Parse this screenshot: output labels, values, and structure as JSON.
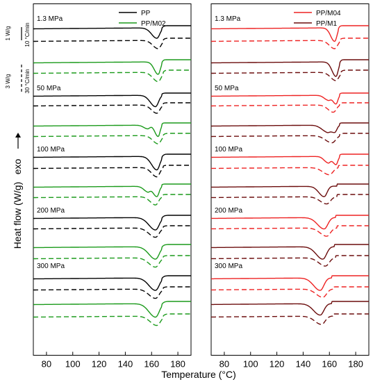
{
  "chart_data": [
    {
      "type": "line",
      "panel": "left",
      "x_range": [
        70,
        190
      ],
      "x_ticks": [
        80,
        100,
        120,
        140,
        160,
        180
      ],
      "y_label": "Heat flow (W/g)",
      "exo_label": "exo",
      "scale_bars": [
        {
          "value": "1 W/g",
          "rate": "10 °C/min"
        },
        {
          "value": "3 W/g",
          "rate": "30 °C/min"
        }
      ],
      "legend": [
        {
          "name": "PP",
          "color": "#000000"
        },
        {
          "name": "PP/M02",
          "color": "#1a9a1a"
        }
      ],
      "pressures": [
        "1.3 MPa",
        "50 MPa",
        "100 MPa",
        "200 MPa",
        "300 MPa"
      ],
      "series": [
        {
          "name": "PP",
          "pressure": "1.3 MPa",
          "style": "solid",
          "color": "#000000",
          "peaks": [
            {
              "x": 164,
              "depth": 1.0,
              "width": 4
            }
          ],
          "endset": 168
        },
        {
          "name": "PP",
          "pressure": "1.3 MPa",
          "style": "dashed",
          "color": "#000000",
          "peaks": [
            {
              "x": 165,
              "depth": 0.8,
              "width": 4
            }
          ],
          "endset": 169
        },
        {
          "name": "PP/M02",
          "pressure": "1.3 MPa",
          "style": "solid",
          "color": "#1a9a1a",
          "peaks": [
            {
              "x": 165,
              "depth": 1.2,
              "width": 3
            }
          ],
          "endset": 168
        },
        {
          "name": "PP/M02",
          "pressure": "1.3 MPa",
          "style": "dashed",
          "color": "#1a9a1a",
          "peaks": [
            {
              "x": 165,
              "depth": 0.9,
              "width": 4
            }
          ],
          "endset": 169
        },
        {
          "name": "PP",
          "pressure": "50 MPa",
          "style": "solid",
          "color": "#000000",
          "peaks": [
            {
              "x": 163,
              "depth": 1.1,
              "width": 4
            }
          ],
          "endset": 168
        },
        {
          "name": "PP",
          "pressure": "50 MPa",
          "style": "dashed",
          "color": "#000000",
          "peaks": [
            {
              "x": 164,
              "depth": 0.8,
              "width": 4
            }
          ],
          "endset": 169
        },
        {
          "name": "PP/M02",
          "pressure": "50 MPa",
          "style": "solid",
          "color": "#1a9a1a",
          "peaks": [
            {
              "x": 157,
              "depth": 0.35,
              "width": 3
            },
            {
              "x": 165,
              "depth": 1.1,
              "width": 2.5
            }
          ],
          "endset": 168
        },
        {
          "name": "PP/M02",
          "pressure": "50 MPa",
          "style": "dashed",
          "color": "#1a9a1a",
          "peaks": [
            {
              "x": 165,
              "depth": 0.8,
              "width": 4
            }
          ],
          "endset": 169
        },
        {
          "name": "PP",
          "pressure": "100 MPa",
          "style": "solid",
          "color": "#000000",
          "peaks": [
            {
              "x": 164,
              "depth": 1.3,
              "width": 4
            }
          ],
          "endset": 168
        },
        {
          "name": "PP",
          "pressure": "100 MPa",
          "style": "dashed",
          "color": "#000000",
          "peaks": [
            {
              "x": 164,
              "depth": 0.9,
              "width": 4
            }
          ],
          "endset": 169
        },
        {
          "name": "PP/M02",
          "pressure": "100 MPa",
          "style": "solid",
          "color": "#1a9a1a",
          "peaks": [
            {
              "x": 157,
              "depth": 0.5,
              "width": 3
            },
            {
              "x": 164,
              "depth": 1.0,
              "width": 3
            }
          ],
          "endset": 168
        },
        {
          "name": "PP/M02",
          "pressure": "100 MPa",
          "style": "dashed",
          "color": "#1a9a1a",
          "peaks": [
            {
              "x": 163,
              "depth": 0.8,
              "width": 4
            }
          ],
          "endset": 169
        },
        {
          "name": "PP",
          "pressure": "200 MPa",
          "style": "solid",
          "color": "#000000",
          "peaks": [
            {
              "x": 163,
              "depth": 1.2,
              "width": 5
            }
          ],
          "endset": 168
        },
        {
          "name": "PP",
          "pressure": "200 MPa",
          "style": "dashed",
          "color": "#000000",
          "peaks": [
            {
              "x": 163,
              "depth": 0.9,
              "width": 5
            }
          ],
          "endset": 169
        },
        {
          "name": "PP/M02",
          "pressure": "200 MPa",
          "style": "solid",
          "color": "#1a9a1a",
          "peaks": [
            {
              "x": 163,
              "depth": 1.2,
              "width": 5
            }
          ],
          "endset": 168
        },
        {
          "name": "PP/M02",
          "pressure": "200 MPa",
          "style": "dashed",
          "color": "#1a9a1a",
          "peaks": [
            {
              "x": 163,
              "depth": 0.9,
              "width": 5
            }
          ],
          "endset": 169
        },
        {
          "name": "PP",
          "pressure": "300 MPa",
          "style": "solid",
          "color": "#000000",
          "peaks": [
            {
              "x": 163,
              "depth": 1.2,
              "width": 5
            }
          ],
          "endset": 168
        },
        {
          "name": "PP",
          "pressure": "300 MPa",
          "style": "dashed",
          "color": "#000000",
          "peaks": [
            {
              "x": 163,
              "depth": 0.9,
              "width": 5
            }
          ],
          "endset": 169
        },
        {
          "name": "PP/M02",
          "pressure": "300 MPa",
          "style": "solid",
          "color": "#1a9a1a",
          "peaks": [
            {
              "x": 163,
              "depth": 1.3,
              "width": 5
            }
          ],
          "endset": 168
        },
        {
          "name": "PP/M02",
          "pressure": "300 MPa",
          "style": "dashed",
          "color": "#1a9a1a",
          "peaks": [
            {
              "x": 164,
              "depth": 0.9,
              "width": 5
            }
          ],
          "endset": 169
        }
      ]
    },
    {
      "type": "line",
      "panel": "right",
      "x_range": [
        70,
        190
      ],
      "x_ticks": [
        80,
        100,
        120,
        140,
        160,
        180
      ],
      "legend": [
        {
          "name": "PP/M04",
          "color": "#ee2222"
        },
        {
          "name": "PP/M1",
          "color": "#6b0c0c"
        }
      ],
      "pressures": [
        "1.3 MPa",
        "50 MPa",
        "100 MPa",
        "200 MPa",
        "300 MPa"
      ],
      "series": [
        {
          "name": "PP/M04",
          "pressure": "1.3 MPa",
          "style": "solid",
          "color": "#ee2222",
          "peaks": [
            {
              "x": 164,
              "depth": 1.3,
              "width": 3
            }
          ],
          "endset": 167
        },
        {
          "name": "PP/M04",
          "pressure": "1.3 MPa",
          "style": "dashed",
          "color": "#ee2222",
          "peaks": [
            {
              "x": 164,
              "depth": 0.8,
              "width": 4
            }
          ],
          "endset": 168
        },
        {
          "name": "PP/M1",
          "pressure": "1.3 MPa",
          "style": "solid",
          "color": "#6b0c0c",
          "peaks": [
            {
              "x": 165,
              "depth": 1.4,
              "width": 3
            }
          ],
          "endset": 168
        },
        {
          "name": "PP/M1",
          "pressure": "1.3 MPa",
          "style": "dashed",
          "color": "#6b0c0c",
          "peaks": [
            {
              "x": 165,
              "depth": 0.8,
              "width": 4
            }
          ],
          "endset": 169
        },
        {
          "name": "PP/M04",
          "pressure": "50 MPa",
          "style": "solid",
          "color": "#ee2222",
          "peaks": [
            {
              "x": 159,
              "depth": 0.45,
              "width": 3
            },
            {
              "x": 165,
              "depth": 0.85,
              "width": 2.5
            }
          ],
          "endset": 168
        },
        {
          "name": "PP/M04",
          "pressure": "50 MPa",
          "style": "dashed",
          "color": "#ee2222",
          "peaks": [
            {
              "x": 163,
              "depth": 0.7,
              "width": 4
            }
          ],
          "endset": 168
        },
        {
          "name": "PP/M1",
          "pressure": "50 MPa",
          "style": "solid",
          "color": "#6b0c0c",
          "peaks": [
            {
              "x": 158,
              "depth": 0.6,
              "width": 4
            },
            {
              "x": 164,
              "depth": 0.7,
              "width": 3
            }
          ],
          "endset": 168
        },
        {
          "name": "PP/M1",
          "pressure": "50 MPa",
          "style": "dashed",
          "color": "#6b0c0c",
          "peaks": [
            {
              "x": 162,
              "depth": 0.7,
              "width": 5
            }
          ],
          "endset": 168
        },
        {
          "name": "PP/M04",
          "pressure": "100 MPa",
          "style": "solid",
          "color": "#ee2222",
          "peaks": [
            {
              "x": 159,
              "depth": 0.6,
              "width": 3
            },
            {
              "x": 165,
              "depth": 0.8,
              "width": 2.5
            }
          ],
          "endset": 168
        },
        {
          "name": "PP/M04",
          "pressure": "100 MPa",
          "style": "dashed",
          "color": "#ee2222",
          "peaks": [
            {
              "x": 160,
              "depth": 0.7,
              "width": 5
            }
          ],
          "endset": 167
        },
        {
          "name": "PP/M1",
          "pressure": "100 MPa",
          "style": "solid",
          "color": "#6b0c0c",
          "peaks": [
            {
              "x": 156,
              "depth": 1.0,
              "width": 4
            }
          ],
          "endset": 166
        },
        {
          "name": "PP/M1",
          "pressure": "100 MPa",
          "style": "dashed",
          "color": "#6b0c0c",
          "peaks": [
            {
              "x": 158,
              "depth": 0.7,
              "width": 5
            }
          ],
          "endset": 166
        },
        {
          "name": "PP/M04",
          "pressure": "200 MPa",
          "style": "solid",
          "color": "#ee2222",
          "peaks": [
            {
              "x": 156,
              "depth": 1.1,
              "width": 5
            }
          ],
          "endset": 165
        },
        {
          "name": "PP/M04",
          "pressure": "200 MPa",
          "style": "dashed",
          "color": "#ee2222",
          "peaks": [
            {
              "x": 158,
              "depth": 0.8,
              "width": 5
            }
          ],
          "endset": 166
        },
        {
          "name": "PP/M1",
          "pressure": "200 MPa",
          "style": "solid",
          "color": "#6b0c0c",
          "peaks": [
            {
              "x": 155,
              "depth": 1.2,
              "width": 5
            }
          ],
          "endset": 164
        },
        {
          "name": "PP/M1",
          "pressure": "200 MPa",
          "style": "dashed",
          "color": "#6b0c0c",
          "peaks": [
            {
              "x": 157,
              "depth": 0.8,
              "width": 5
            }
          ],
          "endset": 165
        },
        {
          "name": "PP/M04",
          "pressure": "300 MPa",
          "style": "solid",
          "color": "#ee2222",
          "peaks": [
            {
              "x": 153,
              "depth": 1.2,
              "width": 5
            }
          ],
          "endset": 162
        },
        {
          "name": "PP/M04",
          "pressure": "300 MPa",
          "style": "dashed",
          "color": "#ee2222",
          "peaks": [
            {
              "x": 155,
              "depth": 0.8,
              "width": 5
            }
          ],
          "endset": 163
        },
        {
          "name": "PP/M1",
          "pressure": "300 MPa",
          "style": "solid",
          "color": "#6b0c0c",
          "peaks": [
            {
              "x": 153,
              "depth": 1.1,
              "width": 5
            }
          ],
          "endset": 162
        },
        {
          "name": "PP/M1",
          "pressure": "300 MPa",
          "style": "dashed",
          "color": "#6b0c0c",
          "peaks": [
            {
              "x": 154,
              "depth": 0.8,
              "width": 5
            }
          ],
          "endset": 163
        }
      ]
    }
  ],
  "x_axis_title": "Temperature (°C)",
  "colors": {
    "pp": "#000000",
    "pp_m02": "#1a9a1a",
    "pp_m04": "#ee2222",
    "pp_m1": "#6b0c0c"
  }
}
